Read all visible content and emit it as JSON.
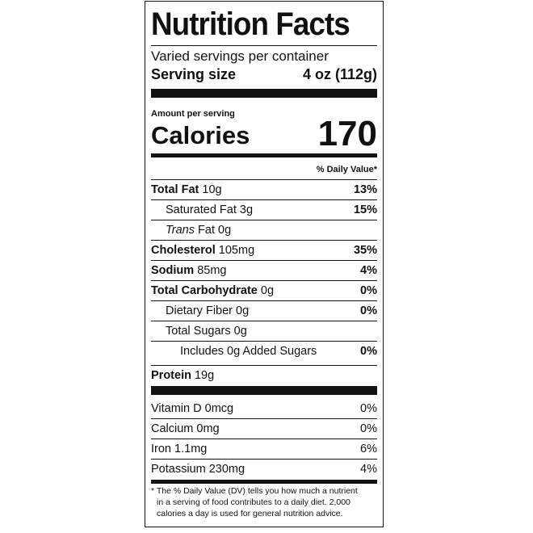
{
  "title": "Nutrition Facts",
  "servings_per_container": "Varied servings per container",
  "serving_size": {
    "label": "Serving size",
    "value": "4 oz (112g)"
  },
  "amount_per_serving": "Amount per serving",
  "calories": {
    "label": "Calories",
    "value": "170"
  },
  "daily_value_header": "% Daily Value*",
  "nutrients": [
    {
      "name": "Total Fat",
      "amount": "10g",
      "dv": "13%"
    },
    {
      "name": "Saturated Fat",
      "amount": "3g",
      "dv": "15%"
    },
    {
      "name_italic": "Trans",
      "name": "Fat",
      "amount": "0g",
      "dv": ""
    },
    {
      "name": "Cholesterol",
      "amount": "105mg",
      "dv": "35%"
    },
    {
      "name": "Sodium",
      "amount": "85mg",
      "dv": "4%"
    },
    {
      "name": "Total Carbohydrate",
      "amount": "0g",
      "dv": "0%"
    },
    {
      "name": "Dietary Fiber",
      "amount": "0g",
      "dv": "0%"
    },
    {
      "name": "Total Sugars",
      "amount": "0g",
      "dv": ""
    },
    {
      "name": "Includes 0g Added Sugars",
      "amount": "",
      "dv": "0%"
    },
    {
      "name": "Protein",
      "amount": "19g",
      "dv": ""
    }
  ],
  "vitamins": [
    {
      "name": "Vitamin D",
      "amount": "0mcg",
      "dv": "0%"
    },
    {
      "name": "Calcium",
      "amount": "0mg",
      "dv": "0%"
    },
    {
      "name": "Iron",
      "amount": "1.1mg",
      "dv": "6%"
    },
    {
      "name": "Potassium",
      "amount": "230mg",
      "dv": "4%"
    }
  ],
  "footnote": {
    "line1": "* The % Daily Value (DV) tells you how much a nutrient",
    "line2": "in a serving of food contributes to a daily diet. 2,000",
    "line3": "calories a day is used for general nutrition advice."
  }
}
